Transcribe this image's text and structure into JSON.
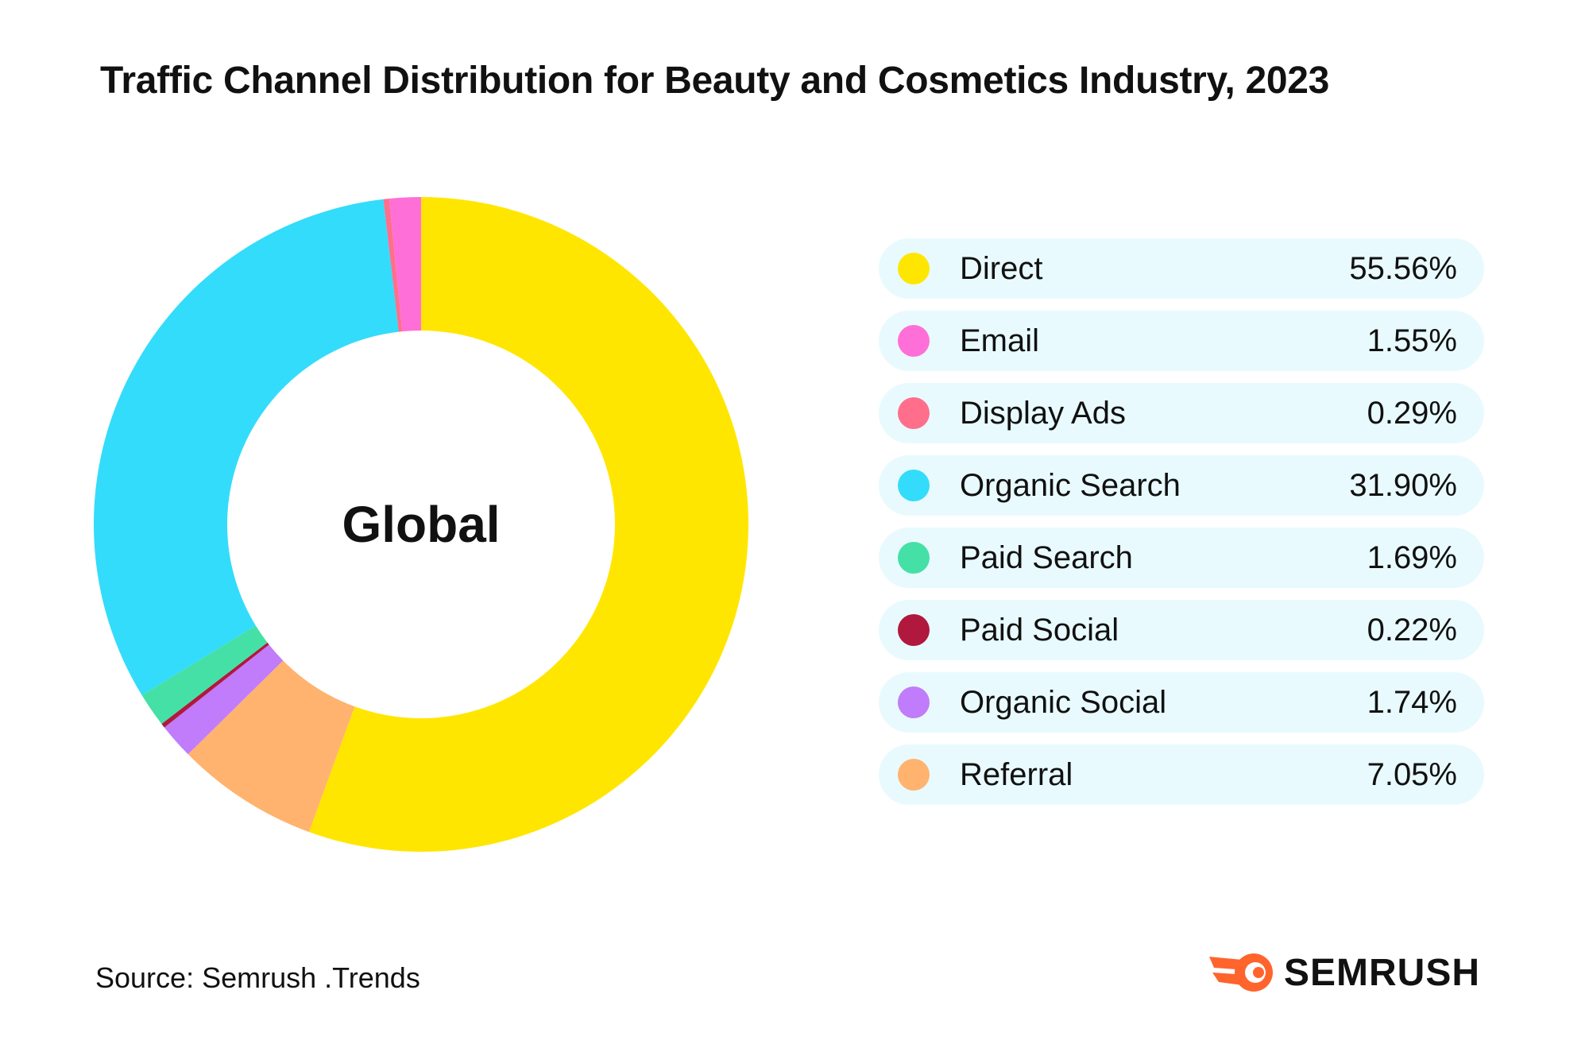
{
  "title": "Traffic Channel Distribution for Beauty and Cosmetics Industry, 2023",
  "chart_data": {
    "type": "pie",
    "center_label": "Global",
    "series": [
      {
        "name": "Direct",
        "value": 55.56,
        "display": "55.56%",
        "color": "#FFE600"
      },
      {
        "name": "Email",
        "value": 1.55,
        "display": "1.55%",
        "color": "#FF6FD8"
      },
      {
        "name": "Display Ads",
        "value": 0.29,
        "display": "0.29%",
        "color": "#FF6F8C"
      },
      {
        "name": "Organic Search",
        "value": 31.9,
        "display": "31.90%",
        "color": "#33DCFA"
      },
      {
        "name": "Paid Search",
        "value": 1.69,
        "display": "1.69%",
        "color": "#45E0A6"
      },
      {
        "name": "Paid Social",
        "value": 0.22,
        "display": "0.22%",
        "color": "#B0183E"
      },
      {
        "name": "Organic Social",
        "value": 1.74,
        "display": "1.74%",
        "color": "#C07CFA"
      },
      {
        "name": "Referral",
        "value": 7.05,
        "display": "7.05%",
        "color": "#FFB36E"
      }
    ],
    "legend_position": "right"
  },
  "source": "Source: Semrush .Trends",
  "logo": {
    "text": "SEMRUSH",
    "icon": "semrush-flame-icon",
    "color": "#FF642D"
  }
}
